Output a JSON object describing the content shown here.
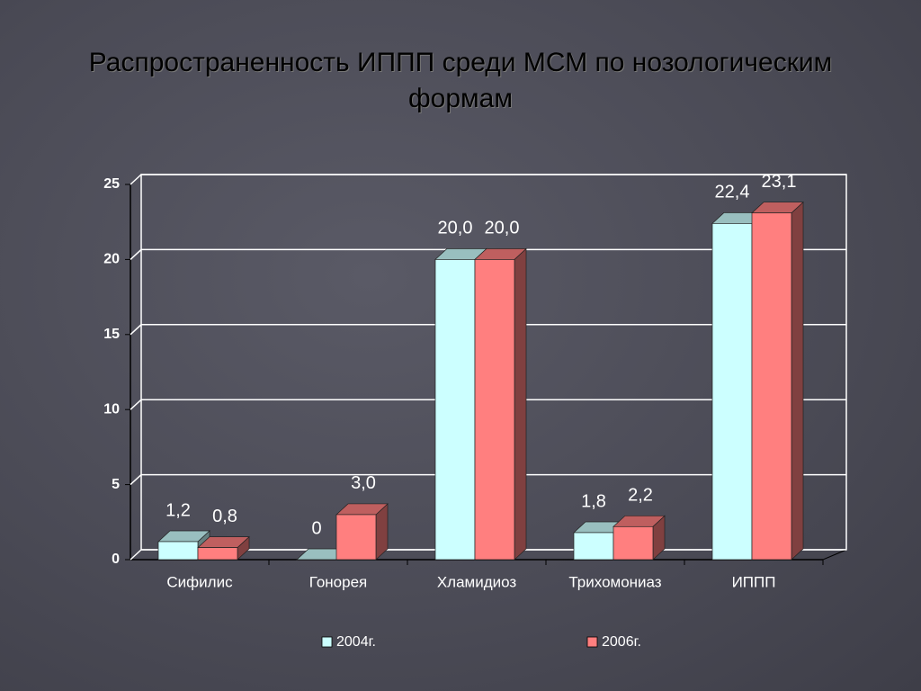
{
  "chart_data": {
    "type": "bar3d",
    "title": "Распространенность ИППП среди МСМ по нозологическим формам",
    "categories": [
      "Сифилис",
      "Гонорея",
      "Хламидиоз",
      "Трихомониаз",
      "ИППП"
    ],
    "series": [
      {
        "name": "2004г.",
        "color": "#ccffff",
        "values": [
          1.2,
          0,
          20.0,
          1.8,
          22.4
        ],
        "value_labels": [
          "1,2",
          "0",
          "20,0",
          "1,8",
          "22,4"
        ]
      },
      {
        "name": "2006г.",
        "color": "#ff7f7f",
        "values": [
          0.8,
          3.0,
          20.0,
          2.2,
          23.1
        ],
        "value_labels": [
          "0,8",
          "3,0",
          "20,0",
          "2,2",
          "23,1"
        ]
      }
    ],
    "ylim": [
      0,
      25
    ],
    "yticks": [
      0,
      5,
      10,
      15,
      20,
      25
    ],
    "grid": true
  }
}
